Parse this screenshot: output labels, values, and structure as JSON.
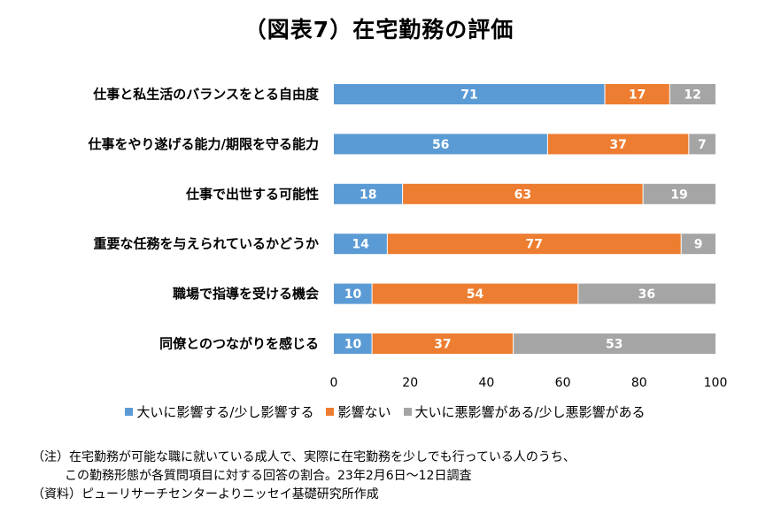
{
  "title": "（図表7）在宅勤務の評価",
  "chart_data": {
    "type": "bar",
    "orientation": "horizontal",
    "stacked": true,
    "categories": [
      "仕事と私生活のバランスをとる自由度",
      "仕事をやり遂げる能力/期限を守る能力",
      "仕事で出世する可能性",
      "重要な任務を与えられているかどうか",
      "職場で指導を受ける機会",
      "同僚とのつながりを感じる"
    ],
    "series": [
      {
        "name": "大いに影響する/少し影響する",
        "color": "#5B9BD5",
        "values": [
          71,
          56,
          18,
          14,
          10,
          10
        ]
      },
      {
        "name": "影響ない",
        "color": "#ED7D31",
        "values": [
          17,
          37,
          63,
          77,
          54,
          37
        ]
      },
      {
        "name": "大いに悪影響がある/少し悪影響がある",
        "color": "#A5A5A5",
        "values": [
          12,
          7,
          19,
          9,
          36,
          53
        ]
      }
    ],
    "xlim": [
      0,
      100
    ],
    "xticks": [
      0,
      20,
      40,
      60,
      80,
      100
    ],
    "grid": false,
    "legend_position": "bottom"
  },
  "notes": [
    "（注）在宅勤務が可能な職に就いている成人で、実際に在宅勤務を少しでも行っている人のうち、",
    "この勤務形態が各質問項目に対する回答の割合。23年2月6日～12日調査",
    "（資料）ピューリサーチセンターよりニッセイ基礎研究所作成"
  ]
}
